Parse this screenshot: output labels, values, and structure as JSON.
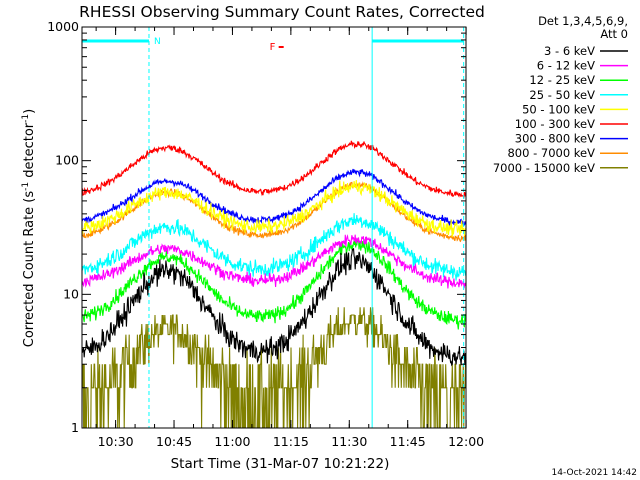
{
  "chart_data": {
    "type": "line",
    "title": "RHESSI Observing Summary Count Rates, Corrected",
    "xlabel": "Start Time (31-Mar-07 10:21:22)",
    "ylabel_main": "Corrected Count Rate (s",
    "ylabel_sup1": "-1",
    "ylabel_mid": " detector",
    "ylabel_sup2": "-1",
    "ylabel_end": ")",
    "ylog": true,
    "ylim": [
      1,
      1000
    ],
    "xlim_minutes": [
      0,
      98.6
    ],
    "x_ticks": [
      {
        "m": 8.63,
        "label": "10:30"
      },
      {
        "m": 23.63,
        "label": "10:45"
      },
      {
        "m": 38.63,
        "label": "11:00"
      },
      {
        "m": 53.63,
        "label": "11:15"
      },
      {
        "m": 68.63,
        "label": "11:30"
      },
      {
        "m": 83.63,
        "label": "11:45"
      },
      {
        "m": 98.63,
        "label": "12:00"
      }
    ],
    "y_ticks": [
      {
        "v": 1,
        "label": "1"
      },
      {
        "v": 10,
        "label": "10"
      },
      {
        "v": 100,
        "label": "100"
      },
      {
        "v": 1000,
        "label": "1000"
      }
    ],
    "legend_header": [
      "Det 1,3,4,5,6,9,",
      "Att 0"
    ],
    "legend_placement": "right",
    "flags": [
      {
        "label": "N",
        "start_min": 0,
        "end_min": 17.2,
        "color": "#00ffff"
      },
      {
        "label": "",
        "start_min": 74.5,
        "end_min": 98.0,
        "color": "#00ffff"
      }
    ],
    "flare_flag": {
      "label": "F",
      "at_min": 50.5
    },
    "dashed_lines_min": [
      17.2,
      98.0
    ],
    "solid_lines_min": [
      0,
      74.5
    ],
    "series": [
      {
        "name": "3 - 6 keV",
        "color": "#000000",
        "base": 3.3,
        "peaks": [
          [
            22.0,
            15
          ],
          [
            70.0,
            18
          ]
        ],
        "quantized": false,
        "noise": 0.1
      },
      {
        "name": "6 - 12 keV",
        "color": "#ff00ff",
        "base": 12,
        "peaks": [
          [
            22.0,
            22
          ],
          [
            70.5,
            26
          ]
        ],
        "quantized": false,
        "noise": 0.05
      },
      {
        "name": "12 - 25 keV",
        "color": "#00ff00",
        "base": 6.2,
        "peaks": [
          [
            22.0,
            19
          ],
          [
            70.5,
            24
          ]
        ],
        "quantized": false,
        "noise": 0.06
      },
      {
        "name": "25 - 50 keV",
        "color": "#00ffff",
        "base": 14.5,
        "peaks": [
          [
            22.0,
            32
          ],
          [
            70.5,
            36
          ]
        ],
        "quantized": false,
        "noise": 0.07
      },
      {
        "name": "50 - 100 keV",
        "color": "#ffff00",
        "base": 30,
        "peaks": [
          [
            22.0,
            58
          ],
          [
            70.5,
            64
          ]
        ],
        "quantized": false,
        "noise": 0.06
      },
      {
        "name": "100 - 300 keV",
        "color": "#ff0000",
        "base": 55,
        "peaks": [
          [
            22.0,
            125
          ],
          [
            70.5,
            133
          ]
        ],
        "quantized": false,
        "noise": 0.03
      },
      {
        "name": "300 - 800 keV",
        "color": "#0000ff",
        "base": 34,
        "peaks": [
          [
            22.0,
            70
          ],
          [
            70.5,
            82
          ]
        ],
        "quantized": false,
        "noise": 0.03
      },
      {
        "name": "800 - 7000 keV",
        "color": "#ff8c00",
        "base": 26,
        "peaks": [
          [
            22.0,
            58
          ],
          [
            70.5,
            66
          ]
        ],
        "quantized": false,
        "noise": 0.03
      },
      {
        "name": "7000 - 15000 keV",
        "color": "#808000",
        "base": 1.5,
        "peaks": [
          [
            22.0,
            5.5
          ],
          [
            70.5,
            6.5
          ]
        ],
        "quantized": true,
        "noise": 0.35
      }
    ]
  },
  "footer_timestamp": "14-Oct-2021 14:42"
}
